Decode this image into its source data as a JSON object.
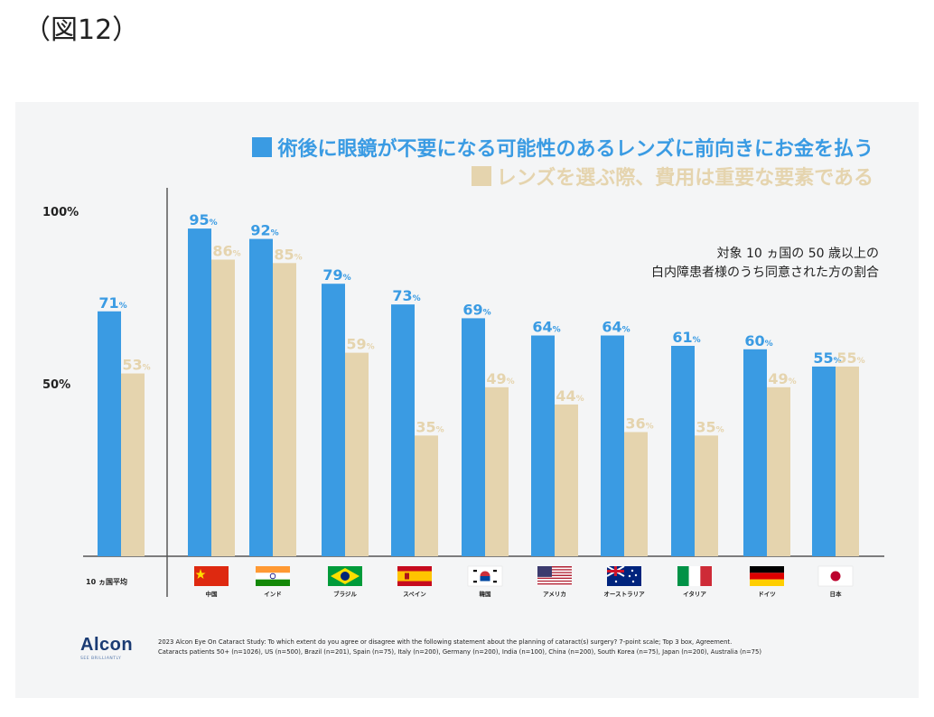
{
  "figure_label": "（図12）",
  "legend": {
    "blue": "術後に眼鏡が不要になる可能性のあるレンズに前向きにお金を払う",
    "beige": "レンズを選ぶ際、費用は重要な要素である"
  },
  "subtitle": [
    "対象 10 ヵ国の 50 歳以上の",
    "白内障患者様のうち同意された方の割合"
  ],
  "colors": {
    "blue": "#3a9be3",
    "beige": "#e5d4ae",
    "panel": "#f4f5f6"
  },
  "chart_data": {
    "type": "bar",
    "categories": [
      "10 ヵ国平均",
      "中国",
      "インド",
      "ブラジル",
      "スペイン",
      "韓国",
      "アメリカ",
      "オーストラリア",
      "イタリア",
      "ドイツ",
      "日本"
    ],
    "series": [
      {
        "name": "術後に眼鏡が不要になる可能性のあるレンズに前向きにお金を払う",
        "values": [
          71,
          95,
          92,
          79,
          73,
          69,
          64,
          64,
          61,
          60,
          55
        ]
      },
      {
        "name": "レンズを選ぶ際、費用は重要な要素である",
        "values": [
          53,
          86,
          85,
          59,
          35,
          49,
          44,
          36,
          35,
          49,
          55
        ]
      }
    ],
    "y_ticks": [
      "100%",
      "50%"
    ],
    "value_suffix": "%",
    "ylim": [
      0,
      100
    ]
  },
  "flags": [
    "china-flag",
    "india-flag",
    "brazil-flag",
    "spain-flag",
    "korea-flag",
    "usa-flag",
    "australia-flag",
    "italy-flag",
    "germany-flag",
    "japan-flag"
  ],
  "brand": {
    "logo": "Alcon",
    "tagline": "SEE BRILLIANTLY"
  },
  "source": [
    "2023 Alcon Eye On Cataract Study: To which extent do you agree or disagree with the following statement about the planning of cataract(s) surgery? 7-point scale; Top 3 box, Agreement.",
    "Cataracts patients 50+ (n=1026), US (n=500), Brazil (n=201), Spain (n=75), Italy (n=200), Germany (n=200), India (n=100), China (n=200), South Korea (n=75), Japan (n=200), Australia (n=75)"
  ]
}
